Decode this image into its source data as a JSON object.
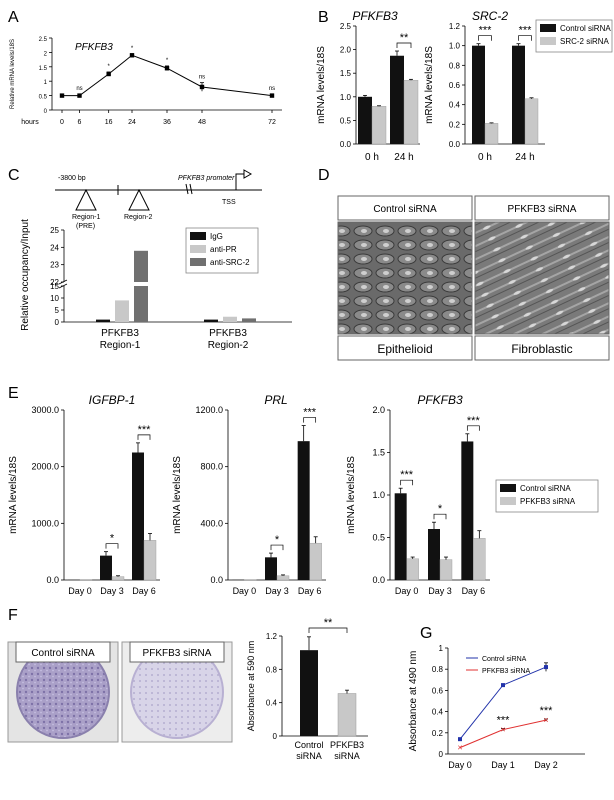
{
  "panel_labels": [
    "A",
    "B",
    "C",
    "D",
    "E",
    "F",
    "G"
  ],
  "chart_data": [
    {
      "panel": "A",
      "type": "line",
      "title": "PFKFB3",
      "xlabel": "hours",
      "ylabel": "Relative mRNA levels/18S",
      "x": [
        0,
        6,
        16,
        24,
        36,
        48,
        72
      ],
      "x_ticks": [
        "0",
        "6",
        "16",
        "24",
        "36",
        "48",
        "72"
      ],
      "y": [
        0.5,
        0.5,
        1.25,
        1.9,
        1.45,
        0.8,
        0.5
      ],
      "err": [
        0.05,
        0.05,
        0.07,
        0.05,
        0.08,
        0.15,
        0.06
      ],
      "sig": [
        "",
        "ns",
        "*",
        "*",
        "*",
        "ns",
        "ns"
      ],
      "ylim": [
        0,
        2.5
      ],
      "y_ticks": [
        "0",
        "0.5",
        "1",
        "1.5",
        "2",
        "2.5"
      ]
    },
    {
      "panel": "B",
      "type": "bar",
      "title": "PFKFB3",
      "ylabel": "mRNA levels/18S",
      "categories": [
        "0 h",
        "24 h"
      ],
      "series": [
        {
          "name": "Control siRNA",
          "values": [
            1.0,
            1.87
          ],
          "err": [
            0.03,
            0.1
          ]
        },
        {
          "name": "SRC-2 siRNA",
          "values": [
            0.8,
            1.35
          ],
          "err": [
            0.01,
            0.02
          ]
        }
      ],
      "ylim": [
        0,
        2.5
      ],
      "y_ticks": [
        "0.0",
        "0.5",
        "1.0",
        "1.5",
        "2.0",
        "2.5"
      ],
      "sig": [
        "",
        "**"
      ]
    },
    {
      "panel": "B",
      "type": "bar",
      "title": "SRC-2",
      "ylabel": "mRNA levels/18S",
      "categories": [
        "0 h",
        "24 h"
      ],
      "series": [
        {
          "name": "Control siRNA",
          "values": [
            1.0,
            1.0
          ],
          "err": [
            0.02,
            0.02
          ]
        },
        {
          "name": "SRC-2 siRNA",
          "values": [
            0.21,
            0.46
          ],
          "err": [
            0.005,
            0.01
          ]
        }
      ],
      "ylim": [
        0,
        1.2
      ],
      "y_ticks": [
        "0.0",
        "0.2",
        "0.4",
        "0.6",
        "0.8",
        "1.0",
        "1.2"
      ],
      "sig": [
        "***",
        "***"
      ],
      "legend": [
        "Control siRNA",
        "SRC-2 siRNA"
      ]
    },
    {
      "panel": "C",
      "type": "bar",
      "ylabel": "Relative occupancy/Input",
      "categories": [
        "PFKFB3\nRegion-1",
        "PFKFB3\nRegion-2"
      ],
      "series": [
        {
          "name": "IgG",
          "values": [
            1.0,
            1.0
          ]
        },
        {
          "name": "anti-PR",
          "values": [
            9.0,
            2.2
          ]
        },
        {
          "name": "anti-SRC-2",
          "values": [
            23.8,
            1.5
          ]
        }
      ],
      "y_ticks": [
        "0",
        "5",
        "10",
        "15",
        "22",
        "23",
        "24",
        "25"
      ],
      "broken_axis": true
    },
    {
      "panel": "E",
      "type": "bar",
      "title": "IGFBP-1",
      "ylabel": "mRNA levels/18S",
      "categories": [
        "Day 0",
        "Day 3",
        "Day 6"
      ],
      "series": [
        {
          "name": "Control siRNA",
          "values": [
            2,
            430,
            2250
          ],
          "err": [
            0,
            70,
            170
          ]
        },
        {
          "name": "PFKFB3 siRNA",
          "values": [
            2,
            60,
            700
          ],
          "err": [
            0,
            15,
            120
          ]
        }
      ],
      "ylim": [
        0,
        3000
      ],
      "y_ticks": [
        "0.0",
        "1000.0",
        "2000.0",
        "3000.0"
      ],
      "sig": [
        "",
        "*",
        "***"
      ]
    },
    {
      "panel": "E",
      "type": "bar",
      "title": "PRL",
      "ylabel": "mRNA levels/18S",
      "categories": [
        "Day 0",
        "Day 3",
        "Day 6"
      ],
      "series": [
        {
          "name": "Control siRNA",
          "values": [
            1,
            160,
            980
          ],
          "err": [
            0,
            30,
            110
          ]
        },
        {
          "name": "PFKFB3 siRNA",
          "values": [
            1,
            30,
            260
          ],
          "err": [
            0,
            6,
            45
          ]
        }
      ],
      "ylim": [
        0,
        1200
      ],
      "y_ticks": [
        "0.0",
        "400.0",
        "800.0",
        "1200.0"
      ],
      "sig": [
        "",
        "*",
        "***"
      ]
    },
    {
      "panel": "E",
      "type": "bar",
      "title": "PFKFB3",
      "ylabel": "mRNA levels/18S",
      "categories": [
        "Day 0",
        "Day 3",
        "Day 6"
      ],
      "series": [
        {
          "name": "Control siRNA",
          "values": [
            1.02,
            0.6,
            1.63
          ],
          "err": [
            0.06,
            0.08,
            0.09
          ]
        },
        {
          "name": "PFKFB3 siRNA",
          "values": [
            0.25,
            0.24,
            0.49
          ],
          "err": [
            0.02,
            0.03,
            0.09
          ]
        }
      ],
      "ylim": [
        0,
        2.0
      ],
      "y_ticks": [
        "0.0",
        "0.5",
        "1.0",
        "1.5",
        "2.0"
      ],
      "sig": [
        "***",
        "*",
        "***"
      ],
      "legend": [
        "Control siRNA",
        "PFKFB3 siRNA"
      ]
    },
    {
      "panel": "F",
      "type": "bar",
      "ylabel": "Absorbance at 590 nm",
      "categories": [
        "Control\nsiRNA",
        "PFKFB3\nsiRNA"
      ],
      "values": [
        1.03,
        0.51
      ],
      "err": [
        0.16,
        0.04
      ],
      "ylim": [
        0,
        1.2
      ],
      "y_ticks": [
        "0",
        "0.4",
        "0.8",
        "1.2"
      ],
      "sig": "**"
    },
    {
      "panel": "G",
      "type": "line",
      "ylabel": "Absorbance at 490 nm",
      "categories": [
        "Day 0",
        "Day 1",
        "Day 2"
      ],
      "series": [
        {
          "name": "Control siRNA",
          "values": [
            0.14,
            0.65,
            0.82
          ],
          "err": [
            0.01,
            0.01,
            0.04
          ],
          "color": "#2233aa"
        },
        {
          "name": "PFKFB3 siRNA",
          "values": [
            0.06,
            0.23,
            0.32
          ],
          "err": [
            0.005,
            0.01,
            0.01
          ],
          "color": "#e03030"
        }
      ],
      "ylim": [
        0,
        1.0
      ],
      "y_ticks": [
        "0",
        "0.2",
        "0.4",
        "0.6",
        "0.8",
        "1"
      ],
      "sig": [
        "",
        "***",
        "***"
      ]
    }
  ],
  "promoter_diagram": {
    "bp_label": "-3800 bp",
    "promoter_label": "PFKFB3 promoter",
    "tss_label": "TSS",
    "region1_label": "Region-1",
    "region1_sub": "(PRE)",
    "region2_label": "Region-2"
  },
  "panel_d": {
    "label_control": "Control siRNA",
    "label_treated": "PFKFB3 siRNA",
    "caption_control": "Epithelioid",
    "caption_treated": "Fibroblastic"
  },
  "panel_f": {
    "label_control": "Control siRNA",
    "label_treated": "PFKFB3 siRNA"
  },
  "colors": {
    "black": "#111111",
    "light_gray": "#c8c8c8",
    "mid_gray": "#707070",
    "blue": "#2233aa",
    "red": "#e03030"
  }
}
